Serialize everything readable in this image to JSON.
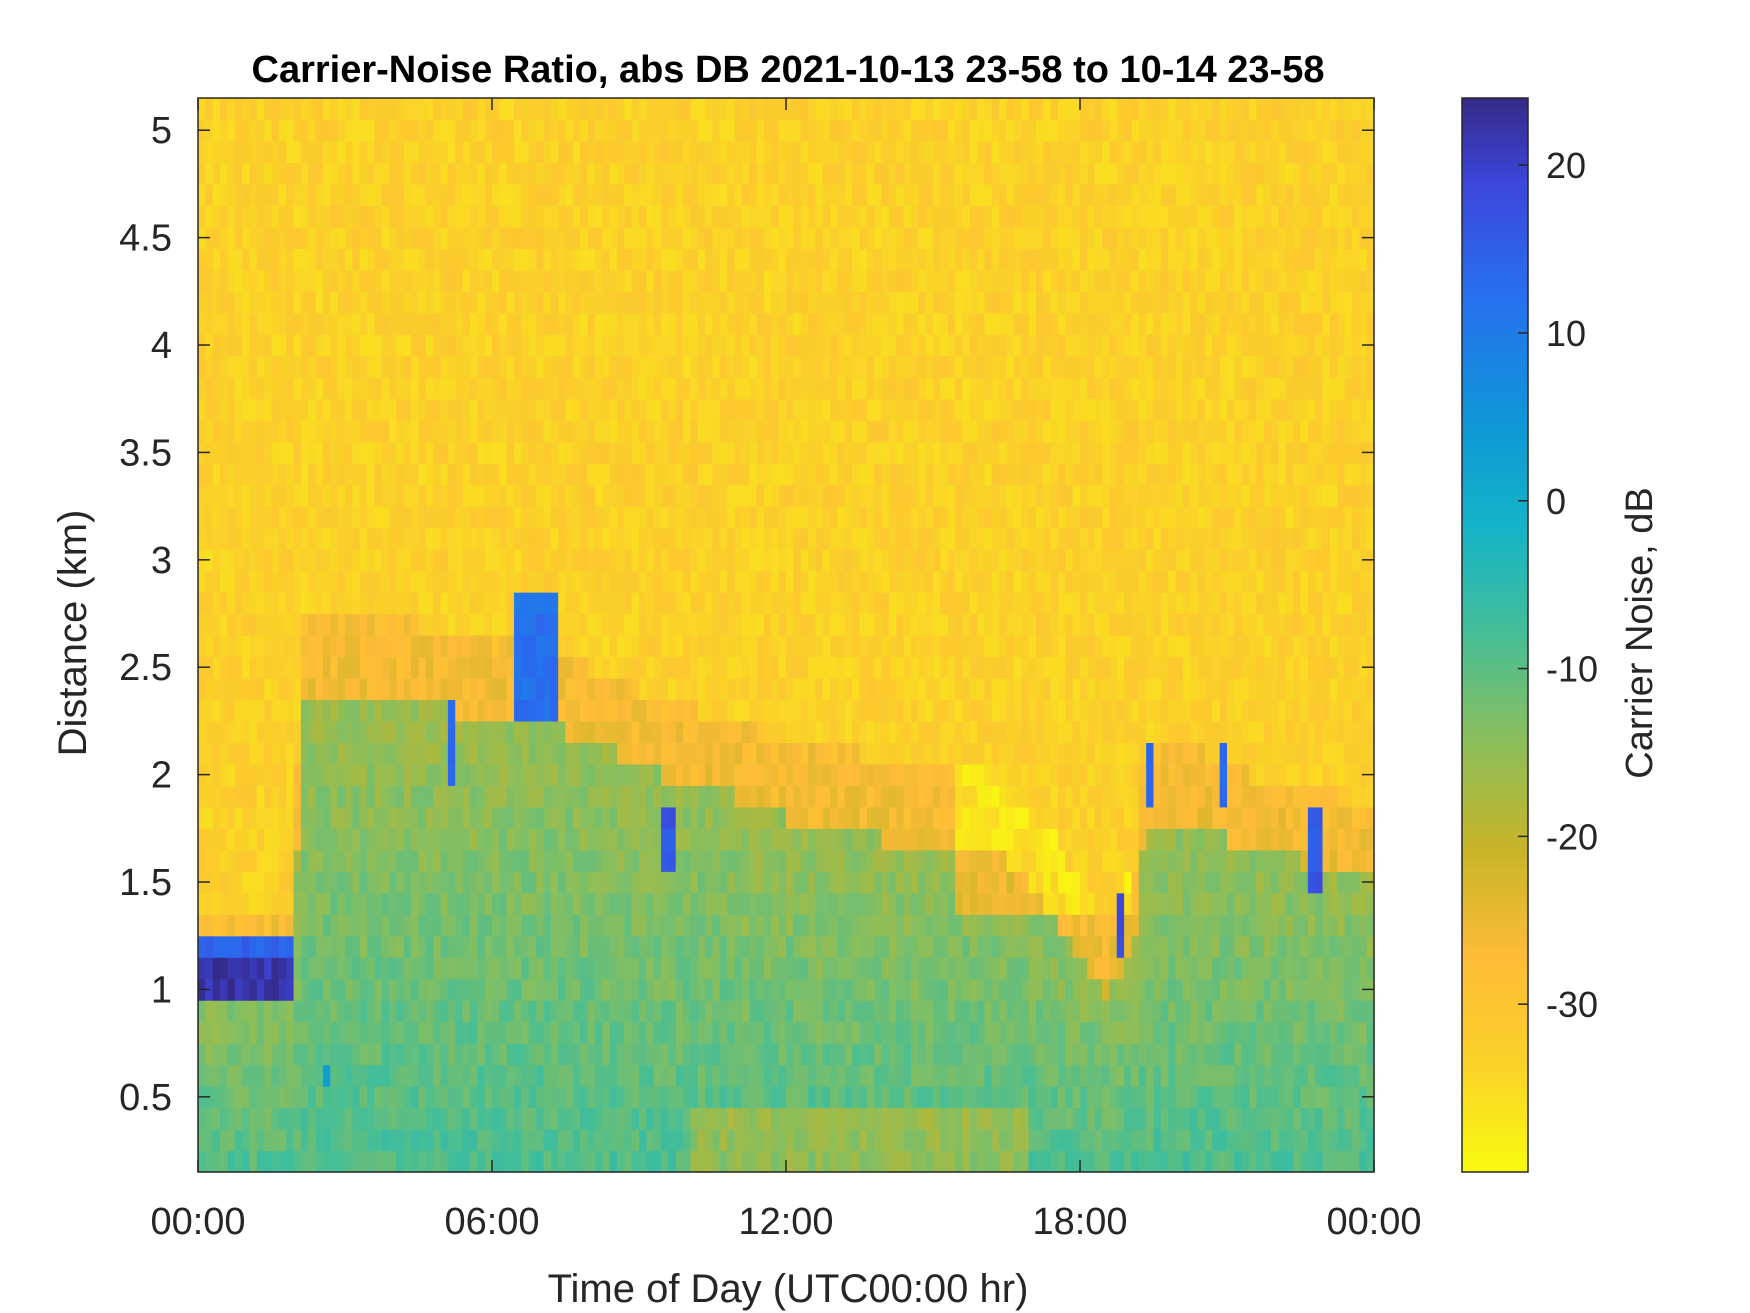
{
  "chart_data": {
    "type": "heatmap",
    "title": "Carrier-Noise Ratio, abs DB 2021-10-13 23-58 to 10-14 23-58",
    "xlabel": "Time of Day (UTC00:00 hr)",
    "ylabel": "Distance (km)",
    "colorbar_label": "Carrier Noise, dB",
    "colormap": "parula-reversed",
    "x_ticks": [
      "00:00",
      "06:00",
      "12:00",
      "18:00",
      "00:00"
    ],
    "x_range_hours": [
      0,
      24
    ],
    "y_ticks": [
      "0.5",
      "1",
      "1.5",
      "2",
      "2.5",
      "3",
      "3.5",
      "4",
      "4.5",
      "5"
    ],
    "y_range_km": [
      0.15,
      5.15
    ],
    "colorbar_ticks": [
      "20",
      "10",
      "0",
      "-10",
      "-20",
      "-30"
    ],
    "clim_db": [
      -40,
      24
    ],
    "background_db": -33,
    "boundary_layer_top_km": [
      [
        0,
        1.3
      ],
      [
        2,
        1.3
      ],
      [
        2.05,
        2.7
      ],
      [
        4.5,
        2.7
      ],
      [
        5.2,
        2.65
      ],
      [
        6.5,
        2.6
      ],
      [
        7.5,
        2.55
      ],
      [
        9.5,
        2.35
      ],
      [
        11,
        2.25
      ],
      [
        12,
        2.15
      ],
      [
        13.5,
        2.1
      ],
      [
        14.5,
        2.0
      ],
      [
        16,
        2.0
      ],
      [
        16.5,
        1.95
      ],
      [
        17.5,
        1.7
      ],
      [
        18.5,
        1.3
      ],
      [
        19.2,
        1.6
      ],
      [
        19.3,
        2.15
      ],
      [
        20.5,
        2.1
      ],
      [
        21.5,
        2.0
      ],
      [
        22.5,
        1.95
      ],
      [
        24,
        1.85
      ]
    ],
    "surface_signal_db": -8,
    "strong_echo_regions": [
      {
        "time_h": [
          0,
          2.0
        ],
        "range_km": [
          1.0,
          1.2
        ],
        "db": 22
      },
      {
        "time_h": [
          0,
          1.9
        ],
        "range_km": [
          1.2,
          1.25
        ],
        "db": 14
      },
      {
        "time_h": [
          6.5,
          7.3
        ],
        "range_km": [
          2.25,
          2.85
        ],
        "db": 12
      },
      {
        "time_h": [
          5.1,
          5.3
        ],
        "range_km": [
          2.0,
          2.3
        ],
        "db": 15
      },
      {
        "time_h": [
          9.5,
          9.7
        ],
        "range_km": [
          1.6,
          1.85
        ],
        "db": 16
      },
      {
        "time_h": [
          18.8,
          18.9
        ],
        "range_km": [
          1.15,
          1.4
        ],
        "db": 18
      },
      {
        "time_h": [
          19.3,
          19.5
        ],
        "range_km": [
          1.85,
          2.1
        ],
        "db": 14
      },
      {
        "time_h": [
          20.8,
          21.0
        ],
        "range_km": [
          1.9,
          2.1
        ],
        "db": 14
      },
      {
        "time_h": [
          22.6,
          23.0
        ],
        "range_km": [
          1.5,
          1.8
        ],
        "db": 16
      },
      {
        "time_h": [
          2.5,
          2.7
        ],
        "range_km": [
          0.6,
          0.7
        ],
        "db": 5
      }
    ]
  }
}
